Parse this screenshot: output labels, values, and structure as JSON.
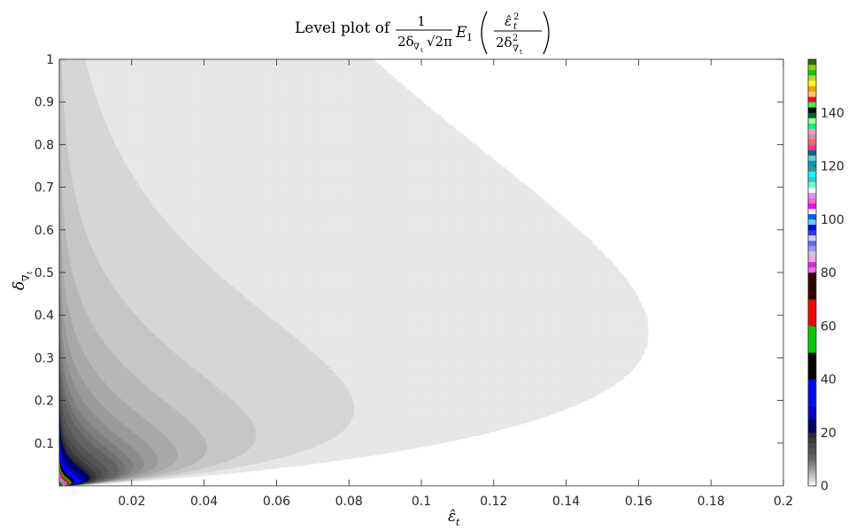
{
  "chart_data": {
    "type": "heatmap",
    "subtype": "filled-contour",
    "title": {
      "prefix": "Level plot of",
      "frac_num": "1",
      "frac_den_a": "2δ",
      "frac_den_sub": "∇",
      "frac_den_subsub": "t",
      "frac_den_b": "√2π",
      "func": "E",
      "func_sub": "1",
      "arg_num": "ε̂",
      "arg_num_sup": "2",
      "arg_num_sub": "t",
      "arg_den_a": "2δ",
      "arg_den_sup": "2",
      "arg_den_sub": "∇",
      "arg_den_subsub": "t"
    },
    "xlabel": {
      "base": "ε̂",
      "sub": "t"
    },
    "ylabel": {
      "base": "δ",
      "sub": "∇",
      "subsub": "t"
    },
    "xlim": [
      0,
      0.2
    ],
    "ylim": [
      0,
      1
    ],
    "x_ticks": [
      0.02,
      0.04,
      0.06,
      0.08,
      0.1,
      0.12,
      0.14,
      0.16,
      0.18,
      0.2
    ],
    "x_tick_labels": [
      "0.02",
      "0.04",
      "0.06",
      "0.08",
      "0.1",
      "0.12",
      "0.14",
      "0.16",
      "0.18",
      "0.2"
    ],
    "y_ticks": [
      0.1,
      0.2,
      0.3,
      0.4,
      0.5,
      0.6,
      0.7,
      0.8,
      0.9,
      1
    ],
    "y_tick_labels": [
      "0.1",
      "0.2",
      "0.3",
      "0.4",
      "0.5",
      "0.6",
      "0.7",
      "0.8",
      "0.9",
      "1"
    ],
    "contour_levels": [
      1,
      2,
      3,
      4,
      5,
      6,
      7,
      8,
      9,
      10,
      12,
      14,
      16,
      18,
      20,
      25,
      30,
      40,
      50,
      60,
      80
    ],
    "colorbar": {
      "range": [
        0,
        160
      ],
      "ticks": [
        0,
        20,
        40,
        60,
        80,
        100,
        120,
        140
      ],
      "tick_labels": [
        "0",
        "20",
        "40",
        "60",
        "80",
        "100",
        "120",
        "140"
      ],
      "segments": [
        {
          "from": 0,
          "to": 1,
          "color": "#ffffff"
        },
        {
          "from": 1,
          "to": 2,
          "color": "#e7e7e7"
        },
        {
          "from": 2,
          "to": 3,
          "color": "#d6d6d6"
        },
        {
          "from": 3,
          "to": 4,
          "color": "#c6c6c6"
        },
        {
          "from": 4,
          "to": 5,
          "color": "#b7b7b7"
        },
        {
          "from": 5,
          "to": 6,
          "color": "#a8a8a8"
        },
        {
          "from": 6,
          "to": 7,
          "color": "#9a9a9a"
        },
        {
          "from": 7,
          "to": 8,
          "color": "#8c8c8c"
        },
        {
          "from": 8,
          "to": 9,
          "color": "#7e7e7e"
        },
        {
          "from": 9,
          "to": 10,
          "color": "#717171"
        },
        {
          "from": 10,
          "to": 12,
          "color": "#636363"
        },
        {
          "from": 12,
          "to": 14,
          "color": "#565656"
        },
        {
          "from": 14,
          "to": 16,
          "color": "#4a4a4a"
        },
        {
          "from": 16,
          "to": 18,
          "color": "#3a3a3a"
        },
        {
          "from": 18,
          "to": 20,
          "color": "#2a2a2a"
        },
        {
          "from": 20,
          "to": 25,
          "color": "#000066"
        },
        {
          "from": 25,
          "to": 30,
          "color": "#0000c8"
        },
        {
          "from": 30,
          "to": 40,
          "color": "#0008ff"
        },
        {
          "from": 40,
          "to": 50,
          "color": "#000000"
        },
        {
          "from": 50,
          "to": 60,
          "color": "#00cc00"
        },
        {
          "from": 60,
          "to": 70,
          "color": "#ff0000"
        },
        {
          "from": 70,
          "to": 80,
          "color": "#330000"
        },
        {
          "from": 80,
          "to": 82,
          "color": "#ff66ff"
        },
        {
          "from": 82,
          "to": 84,
          "color": "#cc33cc"
        },
        {
          "from": 84,
          "to": 86,
          "color": "#ff99ff"
        },
        {
          "from": 86,
          "to": 88,
          "color": "#cccccc"
        },
        {
          "from": 88,
          "to": 90,
          "color": "#9999ff"
        },
        {
          "from": 90,
          "to": 92,
          "color": "#6666ff"
        },
        {
          "from": 92,
          "to": 94,
          "color": "#ccccff"
        },
        {
          "from": 94,
          "to": 96,
          "color": "#3333ff"
        },
        {
          "from": 96,
          "to": 98,
          "color": "#0000ff"
        },
        {
          "from": 98,
          "to": 100,
          "color": "#66ccff"
        },
        {
          "from": 100,
          "to": 102,
          "color": "#0066ff"
        },
        {
          "from": 102,
          "to": 104,
          "color": "#ffffff"
        },
        {
          "from": 104,
          "to": 106,
          "color": "#ff00ff"
        },
        {
          "from": 106,
          "to": 108,
          "color": "#ff66cc"
        },
        {
          "from": 108,
          "to": 110,
          "color": "#cc99ff"
        },
        {
          "from": 110,
          "to": 112,
          "color": "#ffffff"
        },
        {
          "from": 112,
          "to": 114,
          "color": "#66ffcc"
        },
        {
          "from": 114,
          "to": 116,
          "color": "#33cccc"
        },
        {
          "from": 116,
          "to": 118,
          "color": "#00ffff"
        },
        {
          "from": 118,
          "to": 120,
          "color": "#339999"
        },
        {
          "from": 120,
          "to": 122,
          "color": "#0099cc"
        },
        {
          "from": 122,
          "to": 124,
          "color": "#66cccc"
        },
        {
          "from": 124,
          "to": 126,
          "color": "#006699"
        },
        {
          "from": 126,
          "to": 128,
          "color": "#ff3399"
        },
        {
          "from": 128,
          "to": 130,
          "color": "#ff6666"
        },
        {
          "from": 130,
          "to": 132,
          "color": "#cc9999"
        },
        {
          "from": 132,
          "to": 134,
          "color": "#ff99cc"
        },
        {
          "from": 134,
          "to": 136,
          "color": "#00ff66"
        },
        {
          "from": 136,
          "to": 138,
          "color": "#99ff99"
        },
        {
          "from": 138,
          "to": 140,
          "color": "#006633"
        },
        {
          "from": 140,
          "to": 142,
          "color": "#000000"
        },
        {
          "from": 142,
          "to": 144,
          "color": "#33ff33"
        },
        {
          "from": 144,
          "to": 146,
          "color": "#ff0033"
        },
        {
          "from": 146,
          "to": 148,
          "color": "#ffcc66"
        },
        {
          "from": 148,
          "to": 150,
          "color": "#ff9900"
        },
        {
          "from": 150,
          "to": 152,
          "color": "#ffff00"
        },
        {
          "from": 152,
          "to": 154,
          "color": "#cccc33"
        },
        {
          "from": 154,
          "to": 156,
          "color": "#00cc00"
        },
        {
          "from": 156,
          "to": 158,
          "color": "#99cc00"
        },
        {
          "from": 158,
          "to": 160,
          "color": "#336600"
        }
      ]
    },
    "grid": false
  }
}
